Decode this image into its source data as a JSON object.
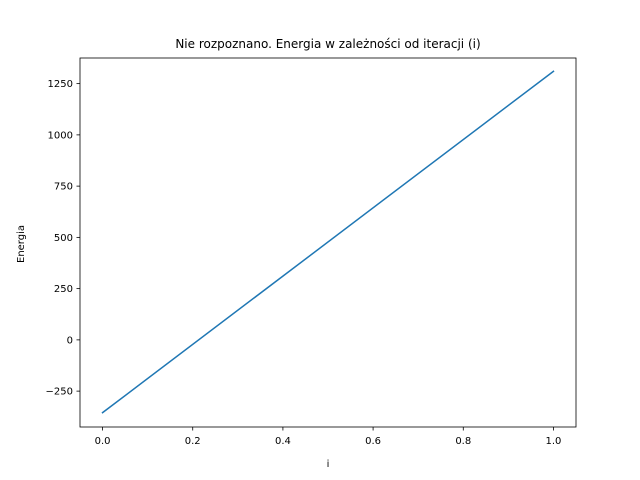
{
  "chart_data": {
    "type": "line",
    "title": "Nie rozpoznano.  Energia w zależności od iteracji (i)",
    "xlabel": "i",
    "ylabel": "Energia",
    "xlim": [
      -0.05,
      1.05
    ],
    "ylim": [
      -425,
      1375
    ],
    "xticks": [
      0.0,
      0.2,
      0.4,
      0.6,
      0.8,
      1.0
    ],
    "xtick_labels": [
      "0.0",
      "0.2",
      "0.4",
      "0.6",
      "0.8",
      "1.0"
    ],
    "yticks": [
      -250,
      0,
      250,
      500,
      750,
      1000,
      1250
    ],
    "ytick_labels": [
      "−250",
      "0",
      "250",
      "500",
      "750",
      "1000",
      "1250"
    ],
    "grid": false,
    "series": [
      {
        "x": [
          0.0,
          1.0
        ],
        "y": [
          -355,
          1310
        ],
        "color": "#1f77b4"
      }
    ]
  }
}
